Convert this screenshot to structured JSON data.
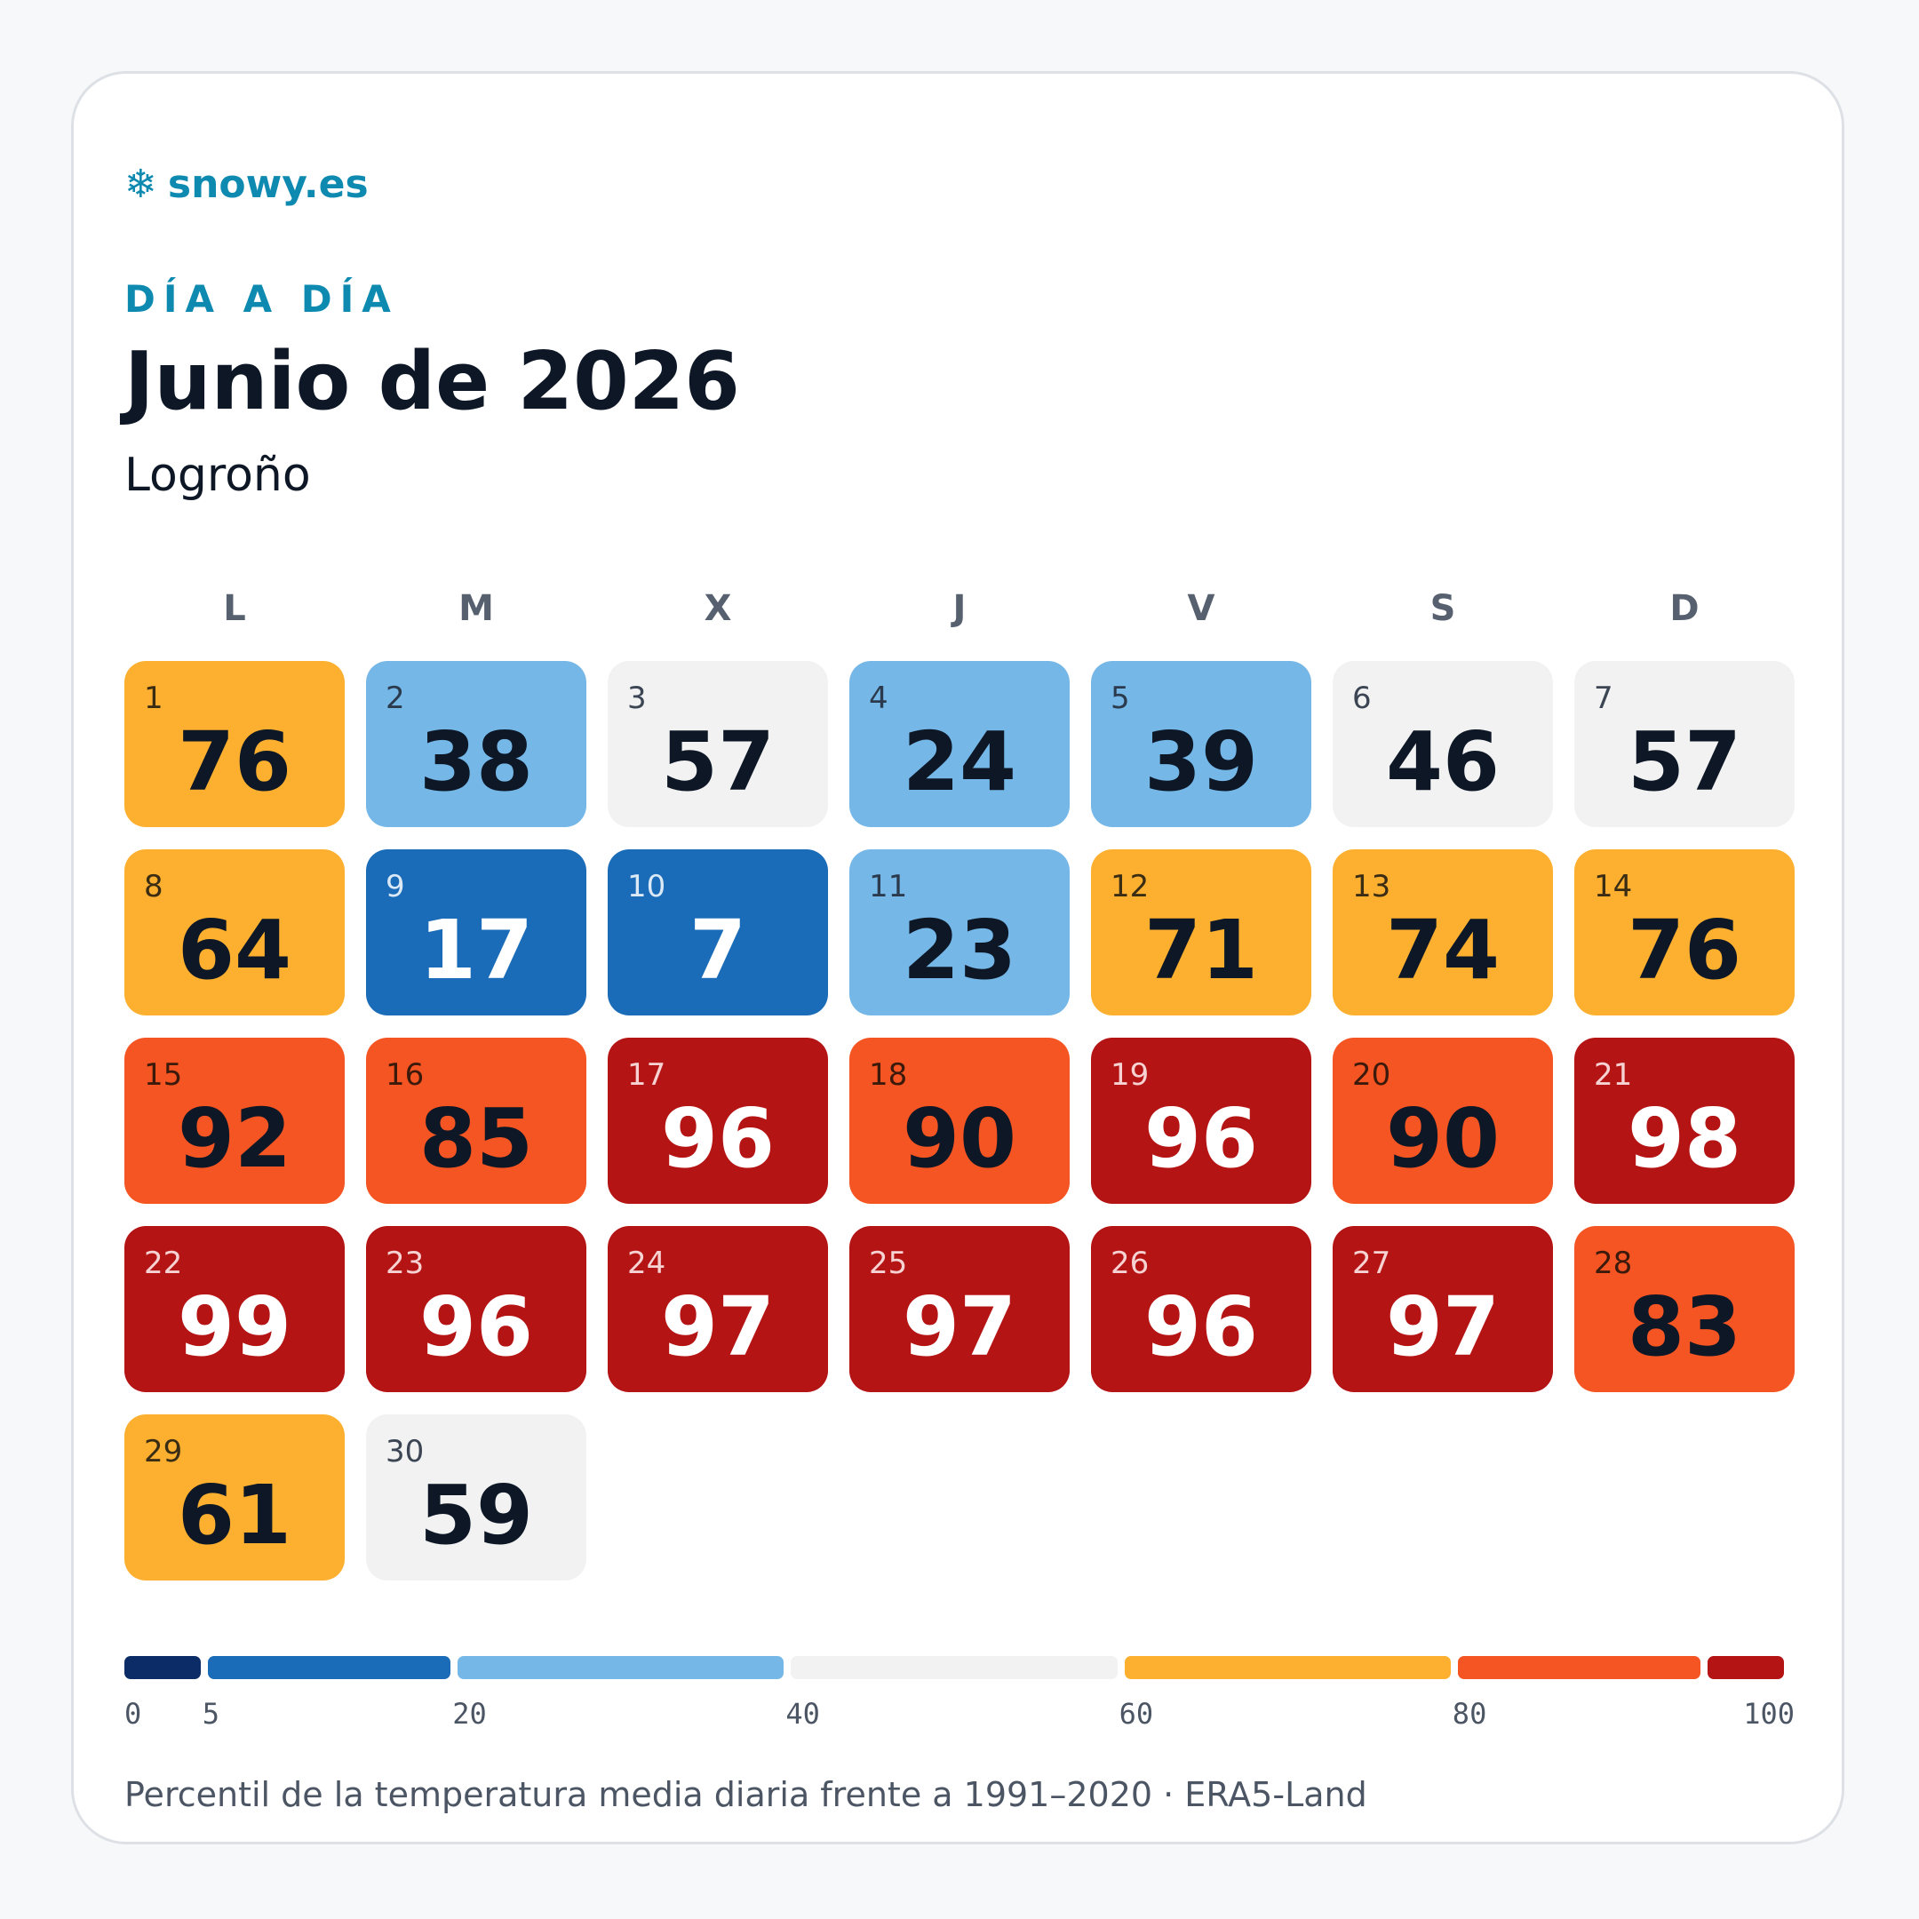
{
  "brand": {
    "icon": "snowflake-icon",
    "glyph": "❄",
    "name": "snowy.es"
  },
  "header": {
    "kicker": "DÍA A DÍA",
    "title": "Junio de 2026",
    "location": "Logroño"
  },
  "weekdays": [
    "L",
    "M",
    "X",
    "J",
    "V",
    "S",
    "D"
  ],
  "calendar": {
    "first_weekday_index": 0,
    "days": [
      {
        "day": "1",
        "value": "76"
      },
      {
        "day": "2",
        "value": "38"
      },
      {
        "day": "3",
        "value": "57"
      },
      {
        "day": "4",
        "value": "24"
      },
      {
        "day": "5",
        "value": "39"
      },
      {
        "day": "6",
        "value": "46"
      },
      {
        "day": "7",
        "value": "57"
      },
      {
        "day": "8",
        "value": "64"
      },
      {
        "day": "9",
        "value": "17"
      },
      {
        "day": "10",
        "value": "7"
      },
      {
        "day": "11",
        "value": "23"
      },
      {
        "day": "12",
        "value": "71"
      },
      {
        "day": "13",
        "value": "74"
      },
      {
        "day": "14",
        "value": "76"
      },
      {
        "day": "15",
        "value": "92"
      },
      {
        "day": "16",
        "value": "85"
      },
      {
        "day": "17",
        "value": "96"
      },
      {
        "day": "18",
        "value": "90"
      },
      {
        "day": "19",
        "value": "96"
      },
      {
        "day": "20",
        "value": "90"
      },
      {
        "day": "21",
        "value": "98"
      },
      {
        "day": "22",
        "value": "99"
      },
      {
        "day": "23",
        "value": "96"
      },
      {
        "day": "24",
        "value": "97"
      },
      {
        "day": "25",
        "value": "97"
      },
      {
        "day": "26",
        "value": "96"
      },
      {
        "day": "27",
        "value": "97"
      },
      {
        "day": "28",
        "value": "83"
      },
      {
        "day": "29",
        "value": "61"
      },
      {
        "day": "30",
        "value": "59"
      }
    ]
  },
  "scale": {
    "min": 0,
    "max": 100,
    "bins": [
      {
        "from": 0,
        "to": 5,
        "color": "#0b2c67",
        "text": "#ffffff",
        "daynum": "#dbe4f2"
      },
      {
        "from": 5,
        "to": 20,
        "color": "#1b6cb8",
        "text": "#ffffff",
        "daynum": "#dbe8f6"
      },
      {
        "from": 20,
        "to": 40,
        "color": "#75b8e8",
        "text": "#0d1726",
        "daynum": "#2b3a4d"
      },
      {
        "from": 40,
        "to": 60,
        "color": "#f2f2f2",
        "text": "#0d1726",
        "daynum": "#3b4553"
      },
      {
        "from": 60,
        "to": 80,
        "color": "#fdb030",
        "text": "#0d1726",
        "daynum": "#3b2d14"
      },
      {
        "from": 80,
        "to": 95,
        "color": "#f55522",
        "text": "#0d1726",
        "daynum": "#3b1a0c"
      },
      {
        "from": 95,
        "to": 100,
        "color": "#b51414",
        "text": "#ffffff",
        "daynum": "#f6d2d2"
      }
    ],
    "ticks": [
      "0",
      "5",
      "20",
      "40",
      "60",
      "80",
      "100"
    ]
  },
  "footnote": "Percentil de la temperatura media diaria frente a 1991–2020 · ERA5-Land"
}
